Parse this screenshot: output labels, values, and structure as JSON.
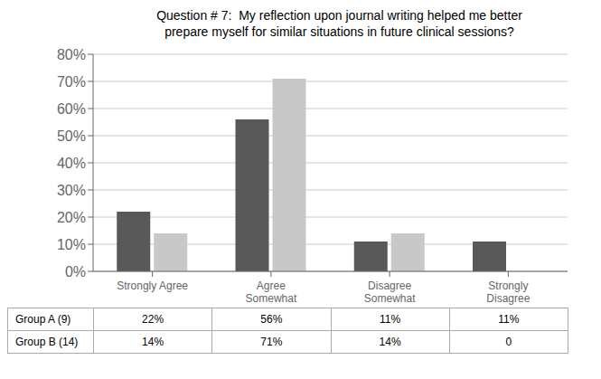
{
  "chart_data": {
    "type": "bar",
    "title": "Question # 7:  My reflection upon journal writing helped me better\nprepare myself for similar situations in future clinical sessions?",
    "categories": [
      "Strongly Agree",
      "Agree\nSomewhat",
      "Disagree\nSomewhat",
      "Strongly\nDisagree"
    ],
    "series": [
      {
        "name": "Group A (9)",
        "color": "#595959",
        "values": [
          22,
          56,
          11,
          11
        ],
        "value_labels": [
          "22%",
          "56%",
          "11%",
          "11%"
        ]
      },
      {
        "name": "Group B (14)",
        "color": "#c8c8c8",
        "values": [
          14,
          71,
          14,
          0
        ],
        "value_labels": [
          "14%",
          "71%",
          "14%",
          "0"
        ]
      }
    ],
    "ylim": [
      0,
      80
    ],
    "yticks": [
      {
        "value": 0,
        "label": "0%"
      },
      {
        "value": 10,
        "label": "10%"
      },
      {
        "value": 20,
        "label": "20%"
      },
      {
        "value": 30,
        "label": "30%"
      },
      {
        "value": 40,
        "label": "40%"
      },
      {
        "value": 50,
        "label": "50%"
      },
      {
        "value": 60,
        "label": "60%"
      },
      {
        "value": 70,
        "label": "70%"
      },
      {
        "value": 80,
        "label": "80%"
      }
    ],
    "grid": true
  }
}
